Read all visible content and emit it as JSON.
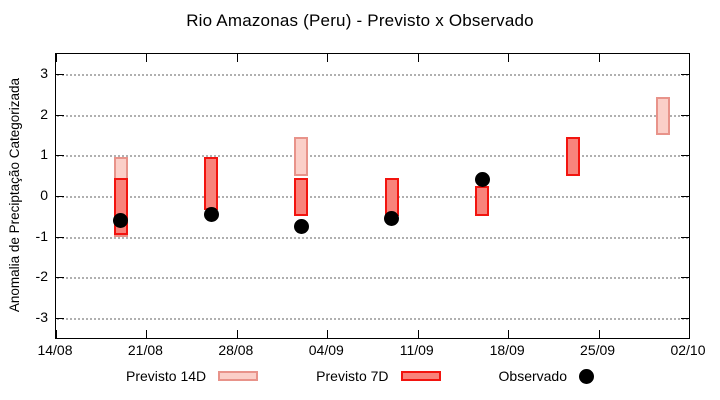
{
  "chart_data": {
    "type": "candlestick",
    "title": "Rio Amazonas (Peru) - Previsto x Observado",
    "ylabel": "Anomalia de Preciptação Categorizada",
    "ylim": [
      -3.5,
      3.5
    ],
    "yticks": [
      3,
      2,
      1,
      0,
      -1,
      -2,
      -3
    ],
    "x_axis": {
      "tick_labels": [
        "14/08",
        "21/08",
        "28/08",
        "04/09",
        "11/09",
        "18/09",
        "25/09",
        "02/10"
      ],
      "tick_interval_days": 7,
      "span_days": 49
    },
    "grid": "horizontal-dotted",
    "colors": {
      "grid": "#b0b0b0",
      "axis": "#000000",
      "background": "#ffffff"
    },
    "series": [
      {
        "name": "Previsto 14D",
        "style": "box",
        "fill": "#fbcfc8",
        "border": "#e8938a",
        "boxes": [
          {
            "date": "19/08",
            "day": 5,
            "low": -1.0,
            "high": 0.95
          },
          {
            "date": "02/09",
            "day": 19,
            "low": 0.5,
            "high": 1.45
          },
          {
            "date": "30/09",
            "day": 47,
            "low": 1.5,
            "high": 2.45
          }
        ]
      },
      {
        "name": "Previsto 7D",
        "style": "box",
        "fill": "#f8837b",
        "border": "#f2140f",
        "boxes": [
          {
            "date": "19/08",
            "day": 5,
            "low": -0.95,
            "high": 0.45
          },
          {
            "date": "26/08",
            "day": 12,
            "low": -0.35,
            "high": 0.95
          },
          {
            "date": "02/09",
            "day": 19,
            "low": -0.5,
            "high": 0.45
          },
          {
            "date": "09/09",
            "day": 26,
            "low": -0.5,
            "high": 0.45
          },
          {
            "date": "16/09",
            "day": 33,
            "low": -0.5,
            "high": 0.25
          },
          {
            "date": "23/09",
            "day": 40,
            "low": 0.5,
            "high": 1.45
          }
        ]
      },
      {
        "name": "Observado",
        "style": "dot",
        "fill": "#000000",
        "points": [
          {
            "date": "19/08",
            "day": 5,
            "value": -0.6
          },
          {
            "date": "26/08",
            "day": 12,
            "value": -0.45
          },
          {
            "date": "02/09",
            "day": 19,
            "value": -0.75
          },
          {
            "date": "09/09",
            "day": 26,
            "value": -0.55
          },
          {
            "date": "16/09",
            "day": 33,
            "value": 0.4
          }
        ]
      }
    ],
    "legend": {
      "position": "bottom-center",
      "entries": [
        "Previsto 14D",
        "Previsto 7D",
        "Observado"
      ]
    }
  }
}
